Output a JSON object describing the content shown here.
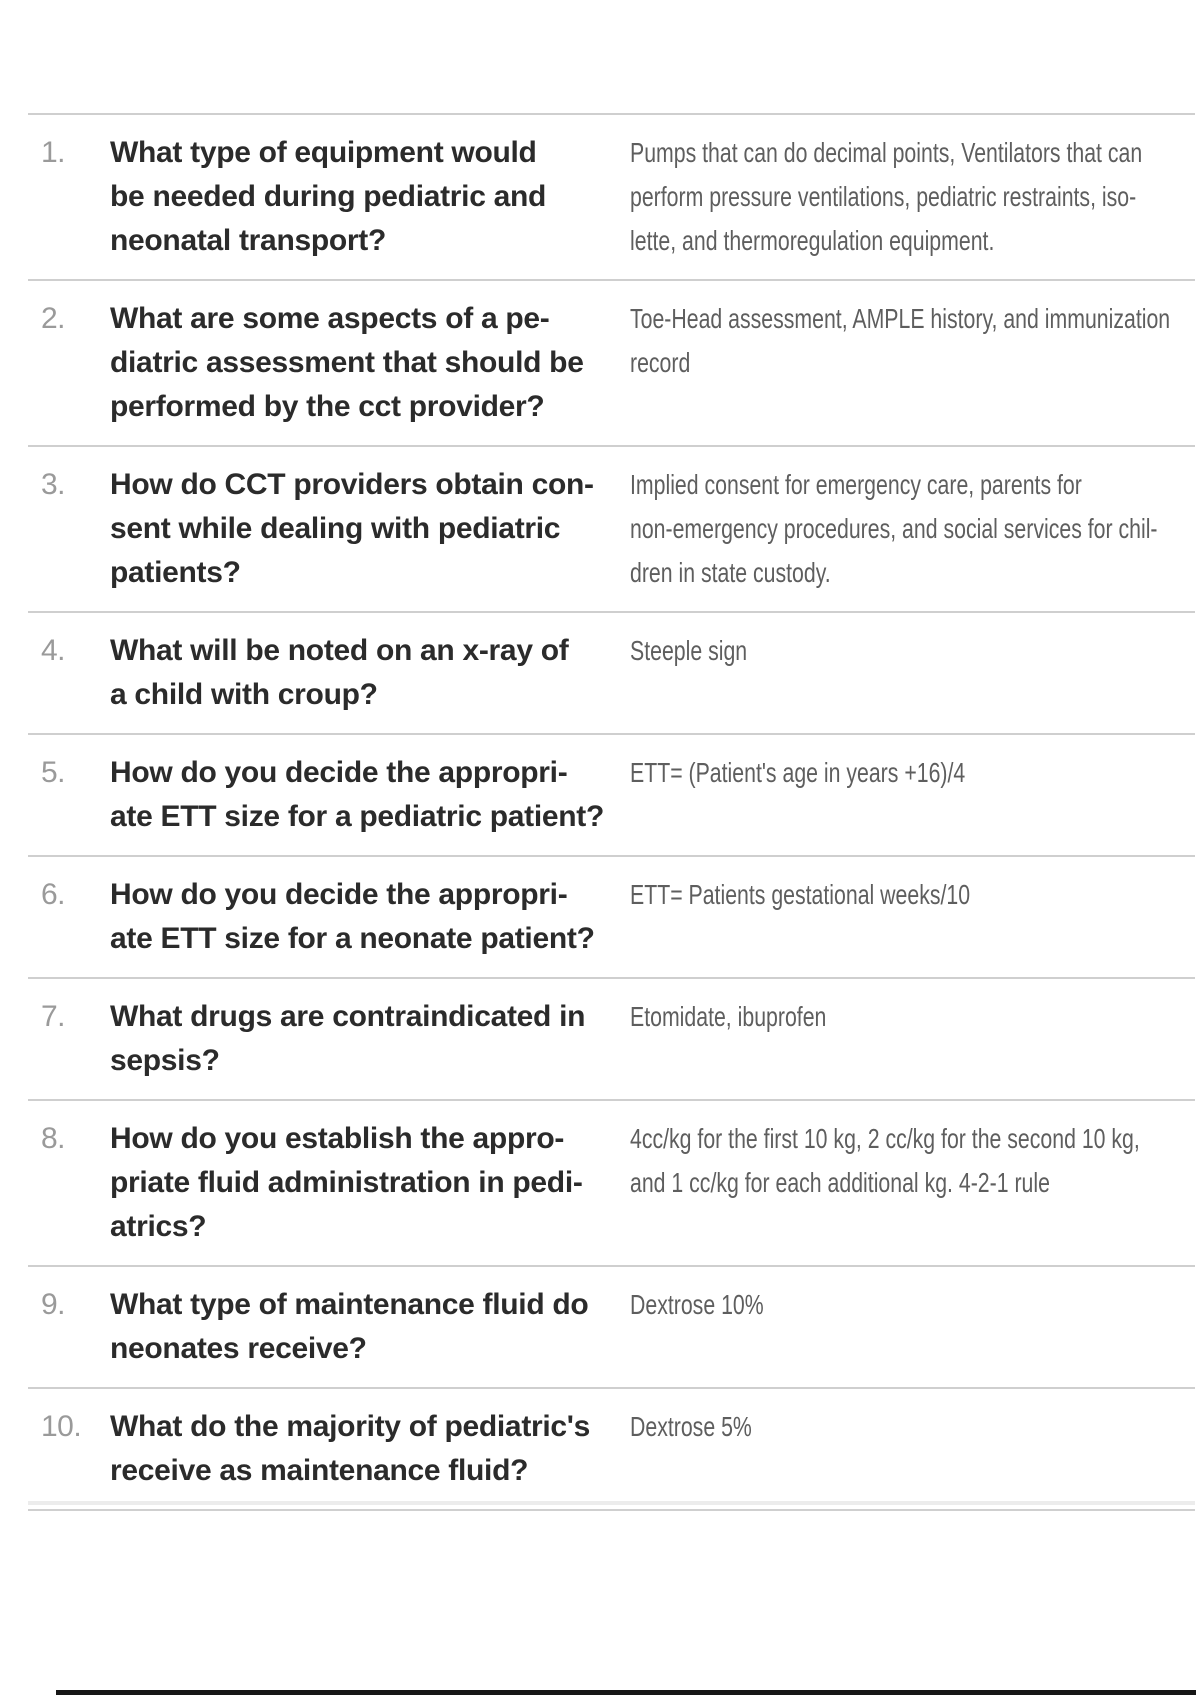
{
  "colors": {
    "question_text": "#2b2b2b",
    "answer_text": "#5e5e5e",
    "number_text": "#9a9a9a",
    "divider": "#cfcfcf",
    "bottom_bar": "#161616",
    "background": "#ffffff"
  },
  "rows": [
    {
      "num": "1.",
      "question": "What type of equipment would\nbe needed during pediatric and\nneonatal transport?",
      "answer": "Pumps that can do decimal points, Ventilators that can\nperform pressure ventilations, pediatric restraints, iso-\nlette, and thermoregulation equipment."
    },
    {
      "num": "2.",
      "question": "What are some aspects of a pe-\ndiatric assessment that should be\nperformed by the cct provider?",
      "answer": "Toe-Head assessment, AMPLE history, and immunization\nrecord"
    },
    {
      "num": "3.",
      "question": "How do CCT providers obtain con-\nsent while dealing with pediatric\npatients?",
      "answer": "Implied consent for emergency care, parents for\nnon-emergency procedures, and social services for chil-\ndren in state custody."
    },
    {
      "num": "4.",
      "question": "What will be noted on an x-ray of\na child with croup?",
      "answer": "Steeple sign"
    },
    {
      "num": "5.",
      "question": "How do you decide the appropri-\nate ETT size for a pediatric patient?",
      "answer": "ETT= (Patient's age in years +16)/4"
    },
    {
      "num": "6.",
      "question": "How do you decide the appropri-\nate ETT size for a neonate patient?",
      "answer": "ETT= Patients gestational weeks/10"
    },
    {
      "num": "7.",
      "question": "What drugs are contraindicated in\nsepsis?",
      "answer": "Etomidate, ibuprofen"
    },
    {
      "num": "8.",
      "question": "How do you establish the appro-\npriate fluid administration in pedi-\natrics?",
      "answer": "4cc/kg for the first 10 kg, 2 cc/kg for the second 10 kg,\nand 1 cc/kg for each additional kg. 4-2-1 rule"
    },
    {
      "num": "9.",
      "question": "What type of maintenance fluid do\nneonates receive?",
      "answer": "Dextrose 10%"
    },
    {
      "num": "10.",
      "question": "What do the majority of pediatric's\nreceive as maintenance fluid?",
      "answer": "Dextrose 5%"
    }
  ]
}
